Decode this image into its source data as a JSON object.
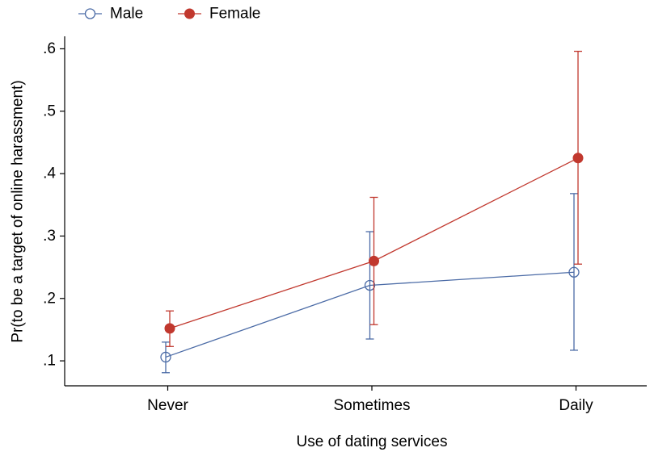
{
  "chart_data": {
    "type": "line",
    "categories": [
      "Never",
      "Sometimes",
      "Daily"
    ],
    "series": [
      {
        "name": "Male",
        "color": "#4b6ba6",
        "marker": "hollow-circle",
        "values": [
          0.106,
          0.221,
          0.242
        ],
        "ci_low": [
          0.081,
          0.135,
          0.117
        ],
        "ci_high": [
          0.13,
          0.307,
          0.368
        ]
      },
      {
        "name": "Female",
        "color": "#c1382e",
        "marker": "filled-circle",
        "values": [
          0.152,
          0.26,
          0.425
        ],
        "ci_low": [
          0.123,
          0.158,
          0.255
        ],
        "ci_high": [
          0.18,
          0.362,
          0.596
        ]
      }
    ],
    "xlabel": "Use of dating services",
    "ylabel": "Pr(to be a target of online harassment)",
    "yticks": [
      {
        "value": 0.1,
        "label": ".1"
      },
      {
        "value": 0.2,
        "label": ".2"
      },
      {
        "value": 0.3,
        "label": ".3"
      },
      {
        "value": 0.4,
        "label": ".4"
      },
      {
        "value": 0.5,
        "label": ".5"
      },
      {
        "value": 0.6,
        "label": ".6"
      }
    ],
    "ylim": [
      0.06,
      0.62
    ],
    "legend": "top-left",
    "grid": false
  }
}
